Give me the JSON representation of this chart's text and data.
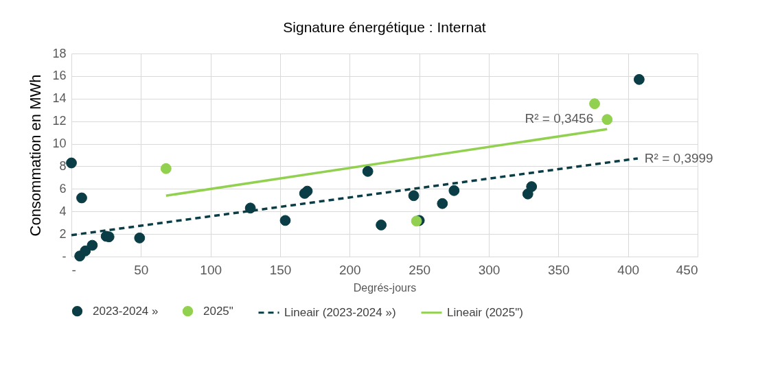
{
  "chart_data": {
    "type": "scatter",
    "title": "Signature énergétique : Internat",
    "xlabel": "Degrés-jours",
    "ylabel": "Consommation en MWh",
    "series": [
      {
        "name": "2023-2024 »",
        "color": "#0a3d45",
        "marker": "circle",
        "x": [
          0,
          7.4,
          6,
          10,
          15,
          25,
          27,
          49,
          128.6,
          153.7,
          167.6,
          169.5,
          213,
          222.6,
          246,
          250,
          266.6,
          275,
          328,
          330.7,
          408
        ],
        "values": [
          8.3,
          5.2,
          0.05,
          0.5,
          1.0,
          1.8,
          1.75,
          1.65,
          4.3,
          3.2,
          5.6,
          5.8,
          7.55,
          2.8,
          5.4,
          3.2,
          4.7,
          5.85,
          5.55,
          6.2,
          15.7
        ]
      },
      {
        "name": "2025\"",
        "color": "#92d050",
        "marker": "circle",
        "x": [
          68,
          248,
          376,
          385
        ],
        "values": [
          7.8,
          3.15,
          13.55,
          12.15
        ]
      },
      {
        "name": "Lineair (2023-2024 »)",
        "type": "line",
        "line_style": "dashed",
        "color": "#0a3d45",
        "x": [
          0,
          407
        ],
        "values": [
          1.9,
          8.7
        ]
      },
      {
        "name": "Lineair (2025\")",
        "type": "line",
        "line_style": "solid",
        "color": "#92d050",
        "x": [
          68,
          385
        ],
        "values": [
          5.4,
          11.3
        ]
      }
    ],
    "annotations": [
      {
        "text": "R² = 0,3456",
        "x": 385,
        "y": 11.3
      },
      {
        "text": "R² = 0,3999",
        "x": 407,
        "y": 8.7
      }
    ],
    "xlim": [
      0,
      450
    ],
    "xticks": [
      {
        "value": 0,
        "label": "-"
      },
      50,
      100,
      150,
      200,
      250,
      300,
      350,
      400,
      450
    ],
    "ylim": [
      0,
      18
    ],
    "yticks": [
      {
        "value": 0,
        "label": "-"
      },
      2,
      4,
      6,
      8,
      10,
      12,
      14,
      16,
      18
    ],
    "grid": true,
    "legend": "bottom"
  }
}
